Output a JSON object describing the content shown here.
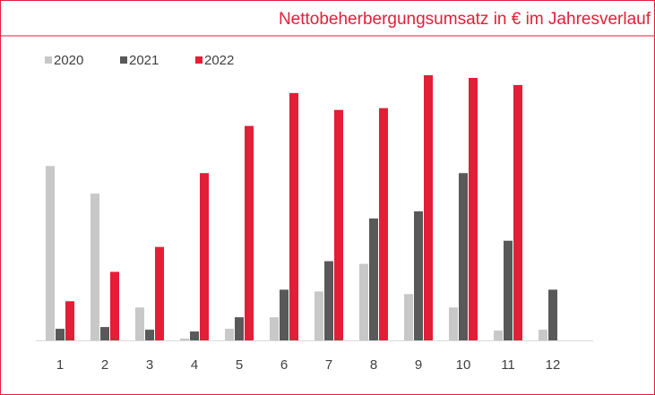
{
  "chart_data": {
    "type": "bar",
    "title": "Nettobeherbergungsumsatz in € im Jahresverlauf",
    "categories": [
      "1",
      "2",
      "3",
      "4",
      "5",
      "6",
      "7",
      "8",
      "9",
      "10",
      "11",
      "12"
    ],
    "series": [
      {
        "name": "2020",
        "color": "#c8c8c8",
        "values": [
          196,
          165,
          37,
          2,
          13,
          26,
          55,
          86,
          52,
          37,
          11,
          12
        ]
      },
      {
        "name": "2021",
        "color": "#595959",
        "values": [
          13,
          15,
          12,
          10,
          26,
          57,
          89,
          137,
          145,
          188,
          112,
          57
        ]
      },
      {
        "name": "2022",
        "color": "#e31e37",
        "values": [
          44,
          77,
          105,
          188,
          241,
          278,
          259,
          261,
          298,
          295,
          287,
          null
        ]
      }
    ],
    "ylim": [
      0,
      300
    ],
    "legend": "top-left"
  }
}
